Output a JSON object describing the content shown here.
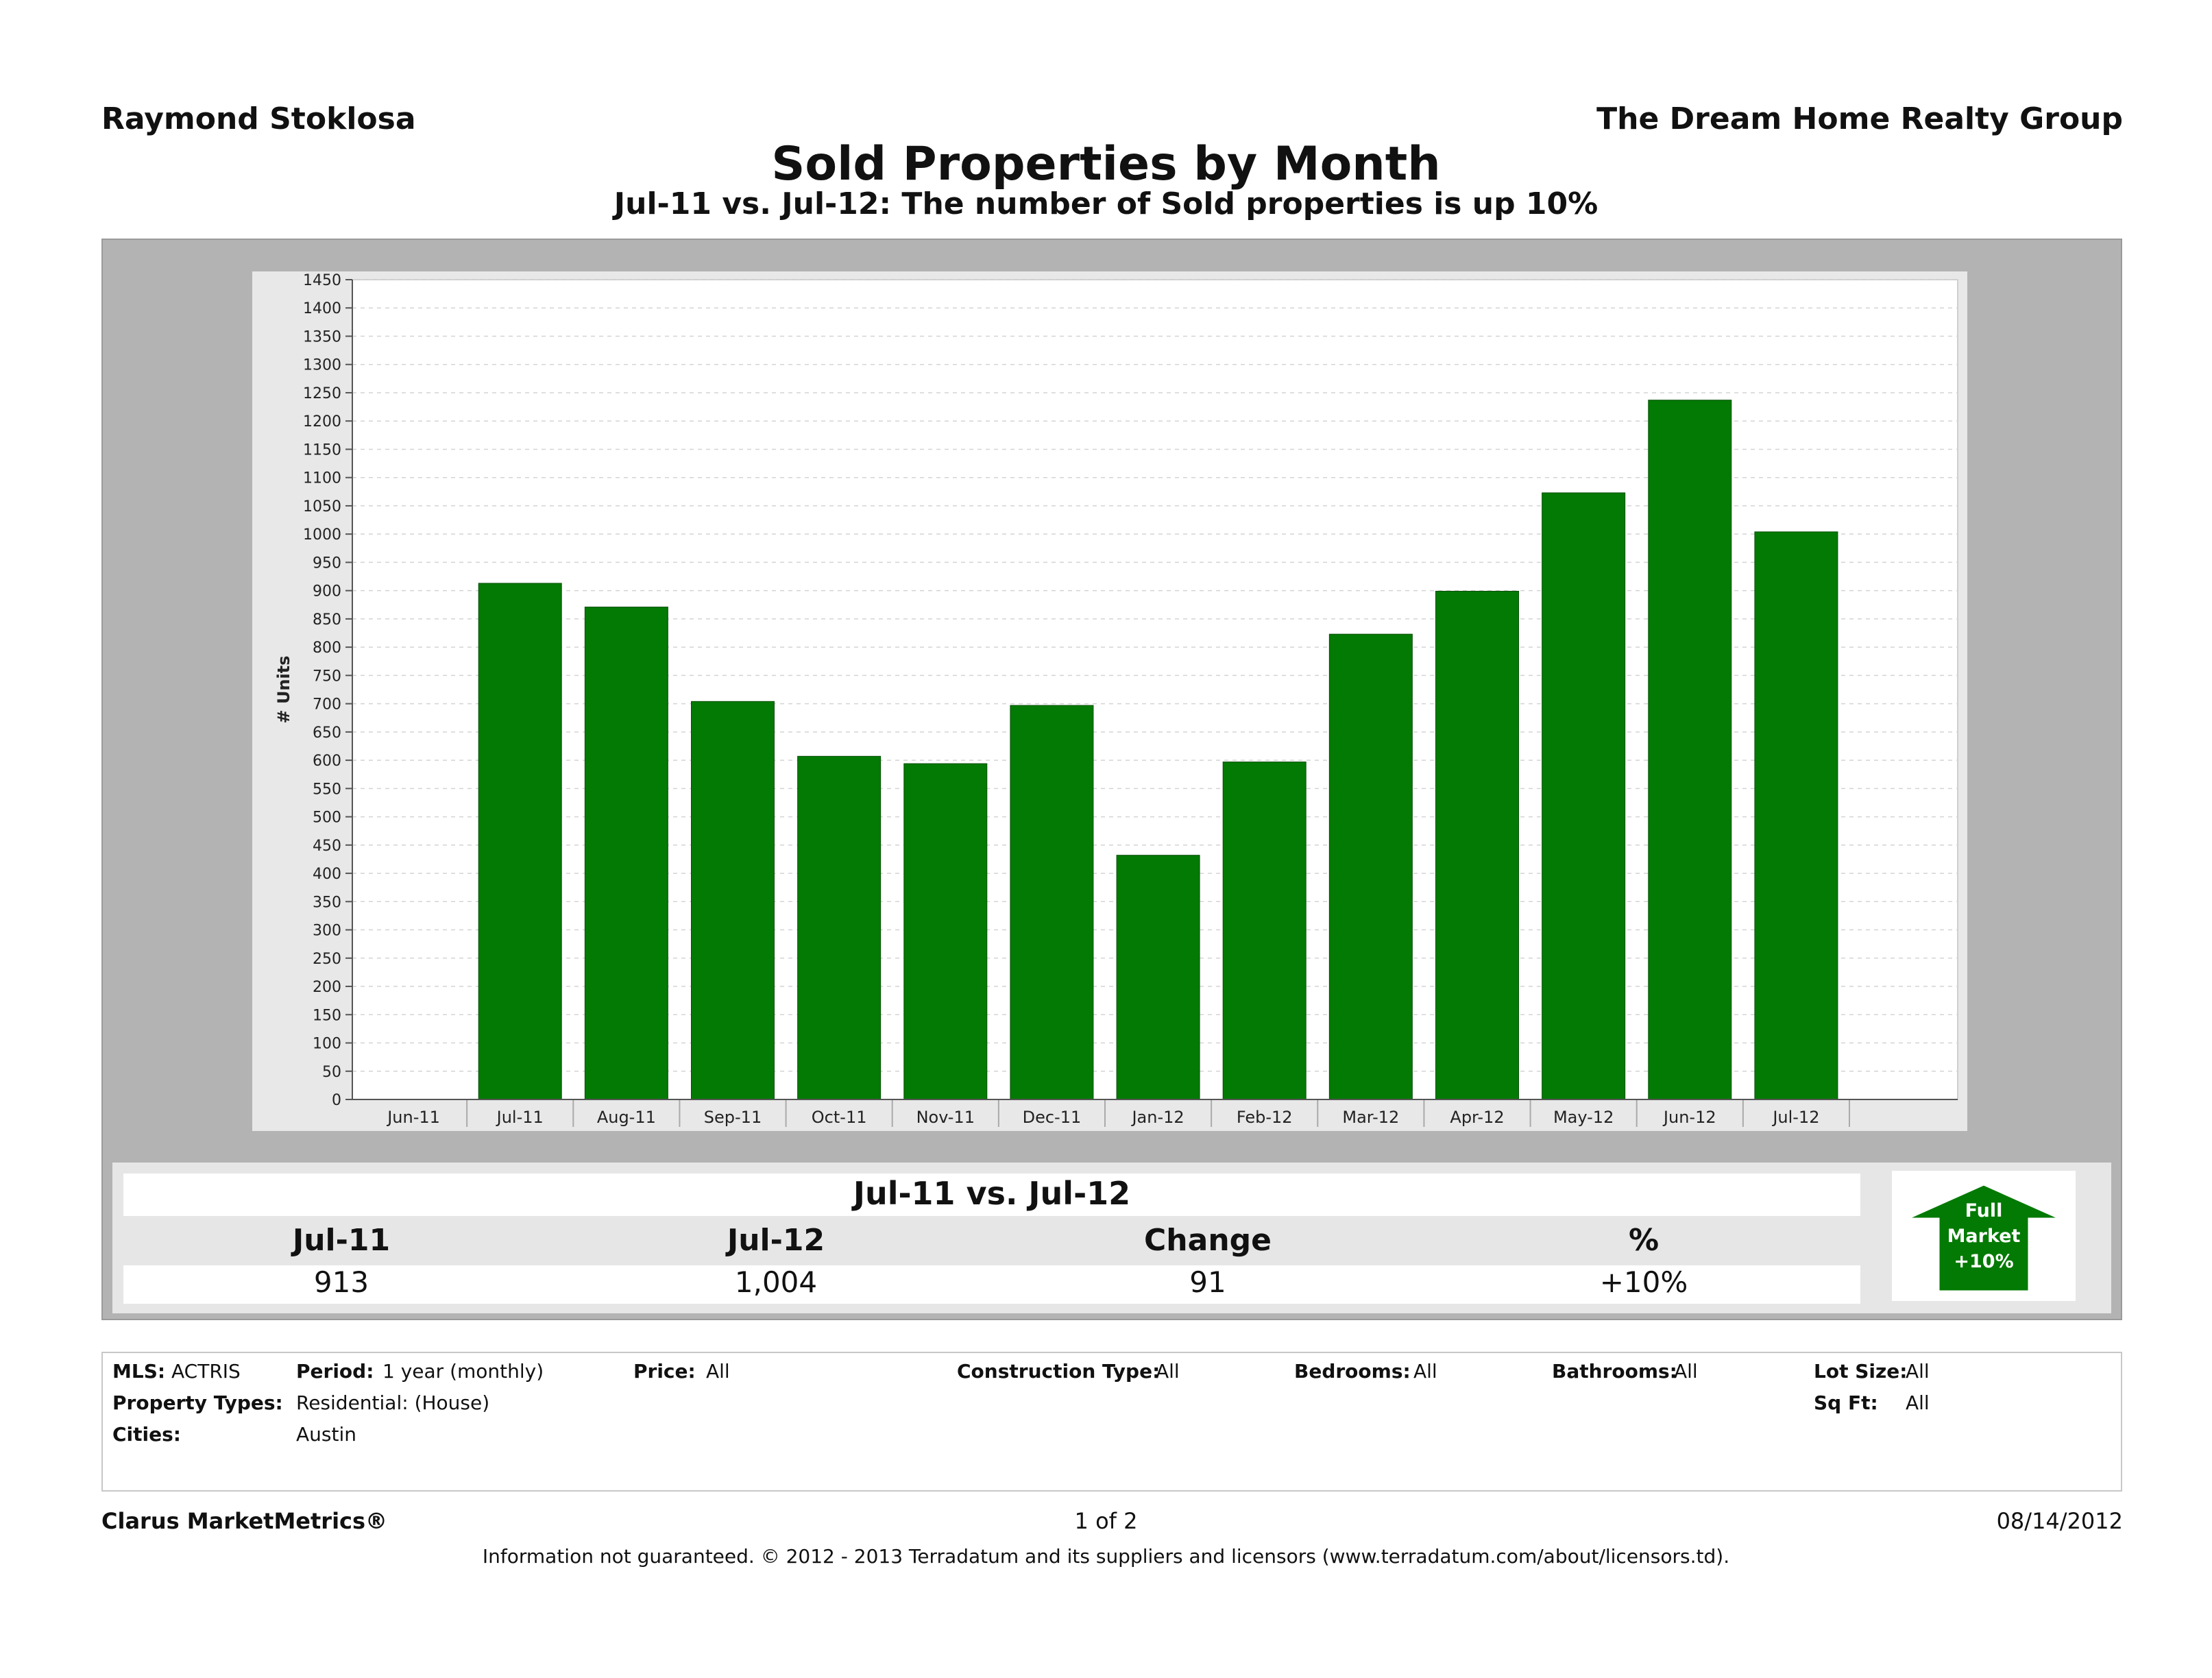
{
  "header": {
    "agent": "Raymond Stoklosa",
    "company": "The Dream Home Realty Group",
    "title": "Sold Properties by Month",
    "subtitle": "Jul-11 vs. Jul-12: The number of Sold properties is up 10%"
  },
  "chart_data": {
    "type": "bar",
    "ylabel": "# Units",
    "xlabel": "",
    "ylim": [
      0,
      1450
    ],
    "ytick_step": 50,
    "grid": true,
    "bar_color": "#037a03",
    "categories": [
      "Jun-11",
      "Jul-11",
      "Aug-11",
      "Sep-11",
      "Oct-11",
      "Nov-11",
      "Dec-11",
      "Jan-12",
      "Feb-12",
      "Mar-12",
      "Apr-12",
      "May-12",
      "Jun-12",
      "Jul-12"
    ],
    "values": [
      null,
      913,
      871,
      704,
      607,
      594,
      697,
      432,
      597,
      823,
      899,
      1073,
      1237,
      1004
    ]
  },
  "summary": {
    "title": "Jul-11 vs. Jul-12",
    "headers": [
      "Jul-11",
      "Jul-12",
      "Change",
      "%"
    ],
    "values": [
      "913",
      "1,004",
      "91",
      "+10%"
    ],
    "badge": {
      "line1": "Full",
      "line2": "Market",
      "line3": "+10%",
      "color": "#037a03",
      "direction": "up"
    }
  },
  "filters": {
    "mls_label": "MLS:",
    "mls_value": "ACTRIS",
    "period_label": "Period:",
    "period_value": "1 year (monthly)",
    "price_label": "Price:",
    "price_value": "All",
    "construction_label": "Construction Type:",
    "construction_value": "All",
    "bedrooms_label": "Bedrooms:",
    "bedrooms_value": "All",
    "bathrooms_label": "Bathrooms:",
    "bathrooms_value": "All",
    "lotsize_label": "Lot Size:",
    "lotsize_value": "All",
    "proptypes_label": "Property Types:",
    "proptypes_value": "Residential: (House)",
    "sqft_label": "Sq Ft:",
    "sqft_value": "All",
    "cities_label": "Cities:",
    "cities_value": "Austin"
  },
  "footer": {
    "brand": "Clarus MarketMetrics®",
    "page": "1 of 2",
    "date": "08/14/2012",
    "disclaimer": "Information not guaranteed.  © 2012 - 2013 Terradatum and its suppliers and licensors (www.terradatum.com/about/licensors.td)."
  }
}
